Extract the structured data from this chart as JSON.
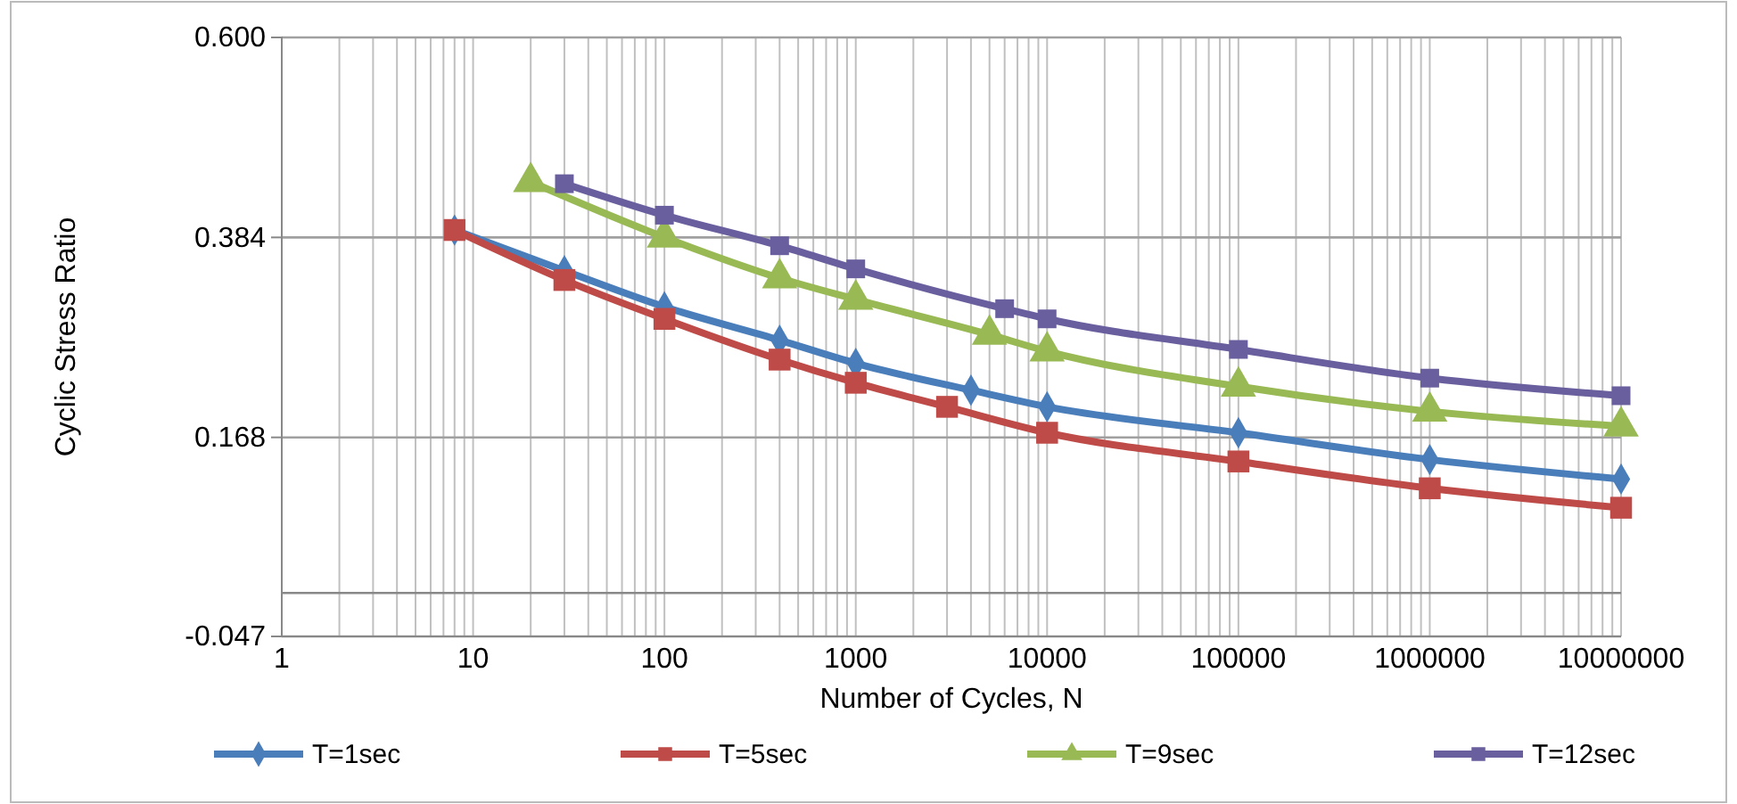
{
  "chart_data": {
    "type": "line",
    "xlabel": "Number of Cycles, N",
    "ylabel": "Cyclic Stress Ratio",
    "log": "x",
    "xlim": [
      1,
      10000000
    ],
    "xticks": [
      1,
      10,
      100,
      1000,
      10000,
      100000,
      1000000,
      10000000
    ],
    "ylim": [
      -0.047,
      0.6
    ],
    "yticks": [
      {
        "value": -0.047,
        "label": "-0.047"
      },
      0.168,
      0.384,
      {
        "value": 0.6,
        "label": "0.600"
      }
    ],
    "grid": true,
    "legend": "bottom",
    "ref_lines": [
      {
        "axis": "y",
        "value": 0
      }
    ],
    "series": [
      {
        "name": "T=1sec",
        "color": "#4a7ebb",
        "marker": "diamond",
        "x": [
          8,
          30,
          100,
          400,
          1000,
          4000,
          10000,
          100000,
          1000000,
          10000000
        ],
        "values": [
          0.392,
          0.348,
          0.309,
          0.273,
          0.248,
          0.219,
          0.201,
          0.173,
          0.144,
          0.123
        ]
      },
      {
        "name": "T=5sec",
        "color": "#be4b48",
        "marker": "square",
        "x": [
          8,
          30,
          100,
          400,
          1000,
          3000,
          10000,
          100000,
          1000000,
          10000000
        ],
        "values": [
          0.392,
          0.338,
          0.296,
          0.252,
          0.227,
          0.201,
          0.173,
          0.142,
          0.113,
          0.092
        ]
      },
      {
        "name": "T=9sec",
        "color": "#98b954",
        "marker": "triangle",
        "x": [
          20,
          100,
          400,
          1000,
          5000,
          10000,
          100000,
          1000000,
          10000000
        ],
        "values": [
          0.444,
          0.384,
          0.34,
          0.317,
          0.279,
          0.261,
          0.223,
          0.196,
          0.18
        ]
      },
      {
        "name": "T=12sec",
        "color": "#6a5f9e",
        "marker": "square",
        "x": [
          30,
          100,
          400,
          1000,
          6000,
          10000,
          100000,
          1000000,
          10000000
        ],
        "values": [
          0.442,
          0.408,
          0.375,
          0.35,
          0.307,
          0.296,
          0.263,
          0.232,
          0.213
        ]
      }
    ]
  }
}
